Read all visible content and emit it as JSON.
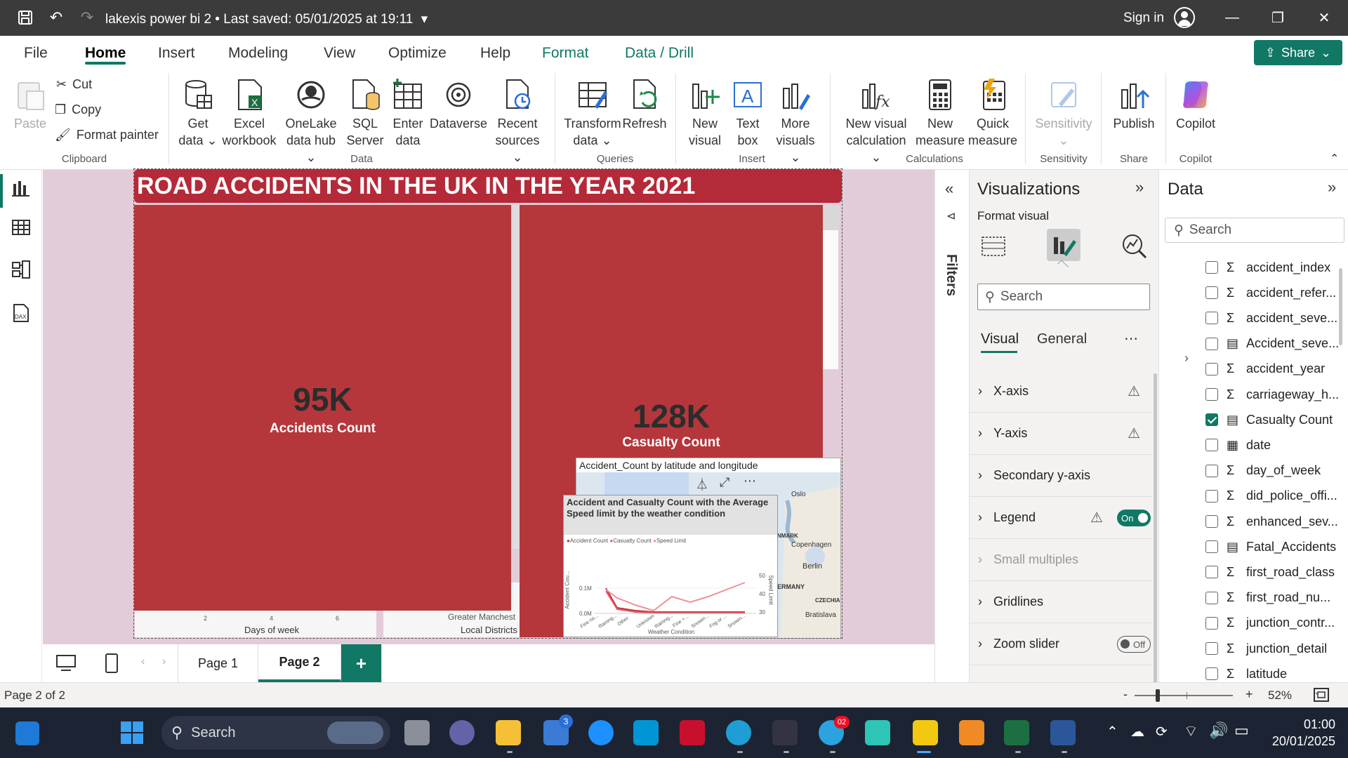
{
  "titlebar": {
    "title": "lakexis power bi 2 • Last saved: 05/01/2025 at 19:11",
    "signin": "Sign in"
  },
  "menu": {
    "file": "File",
    "home": "Home",
    "insert": "Insert",
    "modeling": "Modeling",
    "view": "View",
    "optimize": "Optimize",
    "help": "Help",
    "format": "Format",
    "data_drill": "Data / Drill",
    "share": "Share"
  },
  "ribbon": {
    "paste": "Paste",
    "cut": "Cut",
    "copy": "Copy",
    "format_painter": "Format painter",
    "clipboard": "Clipboard",
    "get_data_1": "Get",
    "get_data_2": "data",
    "excel_1": "Excel",
    "excel_2": "workbook",
    "onelake_1": "OneLake",
    "onelake_2": "data hub",
    "sql_1": "SQL",
    "sql_2": "Server",
    "enter_1": "Enter",
    "enter_2": "data",
    "dataverse": "Dataverse",
    "recent_1": "Recent",
    "recent_2": "sources",
    "data_group": "Data",
    "transform_1": "Transform",
    "transform_2": "data",
    "refresh": "Refresh",
    "queries": "Queries",
    "newvisual_1": "New",
    "newvisual_2": "visual",
    "textbox_1": "Text",
    "textbox_2": "box",
    "morevisuals_1": "More",
    "morevisuals_2": "visuals",
    "insert_group": "Insert",
    "newcalc_1": "New visual",
    "newcalc_2": "calculation",
    "newmeasure_1": "New",
    "newmeasure_2": "measure",
    "quickmeasure_1": "Quick",
    "quickmeasure_2": "measure",
    "calculations": "Calculations",
    "sensitivity": "Sensitivity",
    "sensitivity_group": "Sensitivity",
    "publish": "Publish",
    "share_group": "Share",
    "copilot": "Copilot",
    "copilot_group": "Copilot"
  },
  "report": {
    "title": "ROAD ACCIDENTS IN THE UK IN THE YEAR 2021",
    "card1_value": "95K",
    "card1_label": "Accidents Count",
    "card2_value": "128K",
    "card2_label": "Casualty Count",
    "under_axis1": "Days of week",
    "under_ticks": [
      "2",
      "4",
      "6"
    ],
    "under_axis2_top": "Greater Manchest",
    "under_axis2": "Local Districts",
    "map_title": "Accident_Count by latitude and longitude",
    "map_labels": [
      "Oslo",
      "NMARK",
      "Copenhagen",
      "Berlin",
      "ERMANY",
      "CZECHIA",
      "Bratislava"
    ],
    "line_title": "Accident and Casualty Count with the Average Speed limit by the weather condition",
    "line_legend": [
      "Accident Count",
      "Casualty Count",
      "Speed Limit"
    ],
    "line_yticks": [
      "0.1M",
      "0.0M"
    ],
    "line_y2ticks": [
      "50",
      "40",
      "30"
    ],
    "line_xticks": [
      "Fine no...",
      "Raining...",
      "Other",
      "Unknown",
      "Raining...",
      "Fine +...",
      "Snowin...",
      "Fog or ...",
      "Snowin..."
    ],
    "line_xlabel": "Weather Condition",
    "line_ylabel": "Accident Cou...",
    "line_y2label": "Speed Limit"
  },
  "filters": {
    "label": "Filters"
  },
  "viz": {
    "title": "Visualizations",
    "subtitle": "Format visual",
    "search_placeholder": "Search",
    "tab_visual": "Visual",
    "tab_general": "General",
    "sections": [
      "X-axis",
      "Y-axis",
      "Secondary y-axis",
      "Legend",
      "Small multiples",
      "Gridlines",
      "Zoom slider"
    ],
    "legend_toggle": "On",
    "zoom_toggle": "Off"
  },
  "data_pane": {
    "title": "Data",
    "search_placeholder": "Search",
    "fields": [
      {
        "name": "accident_index",
        "icon": "sigma",
        "checked": false
      },
      {
        "name": "accident_refer...",
        "icon": "sigma",
        "checked": false
      },
      {
        "name": "accident_seve...",
        "icon": "sigma",
        "checked": false
      },
      {
        "name": "Accident_seve...",
        "icon": "calc",
        "checked": false
      },
      {
        "name": "accident_year",
        "icon": "sigma",
        "checked": false
      },
      {
        "name": "carriageway_h...",
        "icon": "sigma",
        "checked": false
      },
      {
        "name": "Casualty Count",
        "icon": "calc",
        "checked": true
      },
      {
        "name": "date",
        "icon": "calendar",
        "checked": false
      },
      {
        "name": "day_of_week",
        "icon": "sigma",
        "checked": false
      },
      {
        "name": "did_police_offi...",
        "icon": "sigma",
        "checked": false
      },
      {
        "name": "enhanced_sev...",
        "icon": "sigma",
        "checked": false
      },
      {
        "name": "Fatal_Accidents",
        "icon": "calc",
        "checked": false
      },
      {
        "name": "first_road_class",
        "icon": "sigma",
        "checked": false
      },
      {
        "name": "first_road_nu...",
        "icon": "sigma",
        "checked": false
      },
      {
        "name": "junction_contr...",
        "icon": "sigma",
        "checked": false
      },
      {
        "name": "junction_detail",
        "icon": "sigma",
        "checked": false
      },
      {
        "name": "latitude",
        "icon": "sigma",
        "checked": false
      }
    ]
  },
  "pages": {
    "page1": "Page 1",
    "page2": "Page 2",
    "add": "+"
  },
  "status": {
    "page_info": "Page 2 of 2",
    "zoom": "52%",
    "minus": "-",
    "plus": "+"
  },
  "taskbar": {
    "search": "Search",
    "time": "01:00",
    "date": "20/01/2025",
    "badge_store": "3",
    "badge_telegram": "02"
  },
  "colors": {
    "accent": "#117865",
    "card_red": "#b5373c",
    "banner_red": "#b52a38",
    "canvas_bg": "#e3ccd9"
  }
}
